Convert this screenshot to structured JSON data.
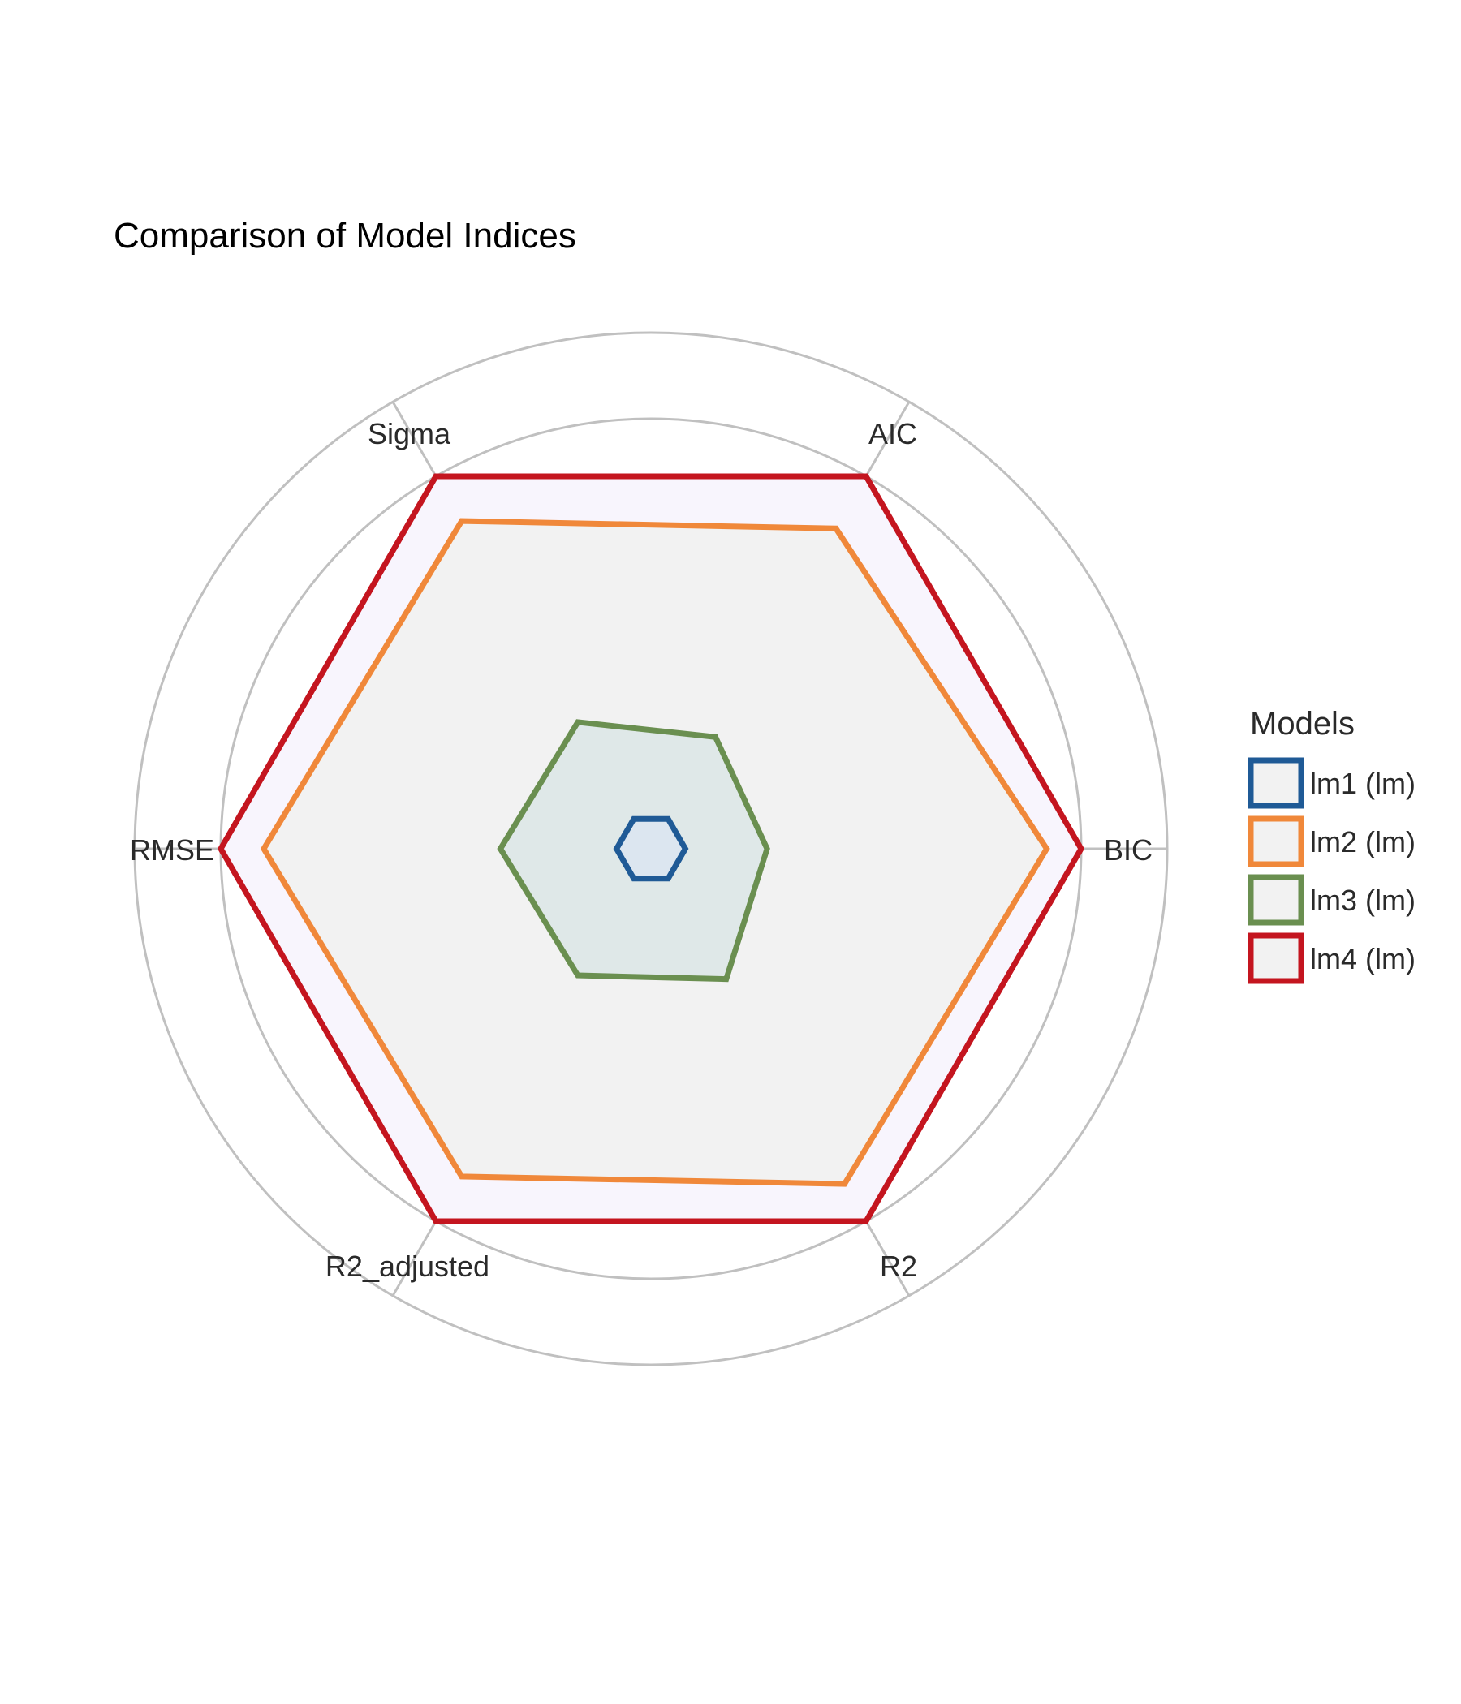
{
  "chart_data": {
    "type": "radar",
    "title": "Comparison of Model Indices",
    "axes": [
      "BIC",
      "AIC",
      "Sigma",
      "RMSE",
      "R2_adjusted",
      "R2"
    ],
    "rlim": [
      0,
      1.2
    ],
    "grid_levels": [
      0.2,
      0.4,
      0.6,
      0.8,
      1.0,
      1.2
    ],
    "grid": true,
    "legend_title": "Models",
    "legend_position": "right",
    "series": [
      {
        "name": "lm1 (lm)",
        "color": "#1f5a96",
        "fill": "#dce6f0",
        "values": [
          0.08,
          0.08,
          0.08,
          0.08,
          0.08,
          0.08
        ]
      },
      {
        "name": "lm2 (lm)",
        "color": "#f0883a",
        "fill": "#f2f2f2",
        "values": [
          0.92,
          0.86,
          0.88,
          0.9,
          0.88,
          0.9
        ]
      },
      {
        "name": "lm3 (lm)",
        "color": "#6a8f50",
        "fill": "#dfe8e8",
        "values": [
          0.27,
          0.3,
          0.34,
          0.35,
          0.34,
          0.35
        ]
      },
      {
        "name": "lm4 (lm)",
        "color": "#c4151f",
        "fill": "#f8f5fd",
        "values": [
          1.0,
          1.0,
          1.0,
          1.0,
          1.0,
          1.0
        ]
      }
    ]
  }
}
